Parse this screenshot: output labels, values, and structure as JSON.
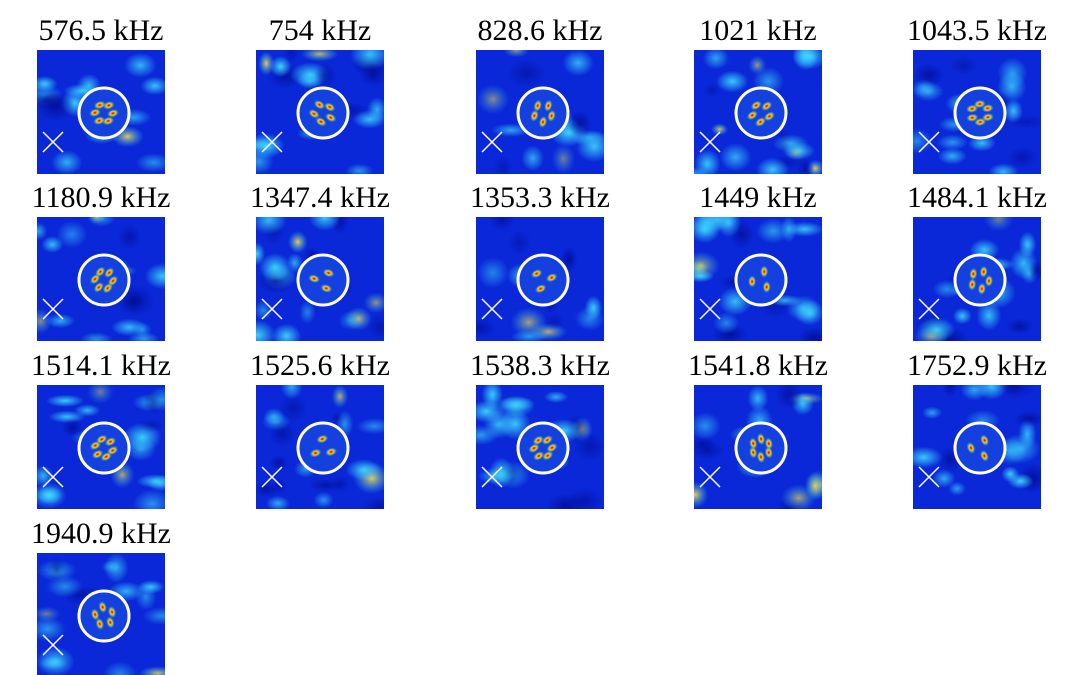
{
  "figure": {
    "panels": [
      {
        "label": "576.5 kHz"
      },
      {
        "label": "754 kHz"
      },
      {
        "label": "828.6 kHz"
      },
      {
        "label": "1021 kHz"
      },
      {
        "label": "1043.5 kHz"
      },
      {
        "label": "1180.9 kHz"
      },
      {
        "label": "1347.4 kHz"
      },
      {
        "label": "1353.3 kHz"
      },
      {
        "label": "1449 kHz"
      },
      {
        "label": "1484.1 kHz"
      },
      {
        "label": "1514.1 kHz"
      },
      {
        "label": "1525.6 kHz"
      },
      {
        "label": "1538.3 kHz"
      },
      {
        "label": "1541.8 kHz"
      },
      {
        "label": "1752.9 kHz"
      },
      {
        "label": "1940.9 kHz"
      }
    ]
  }
}
